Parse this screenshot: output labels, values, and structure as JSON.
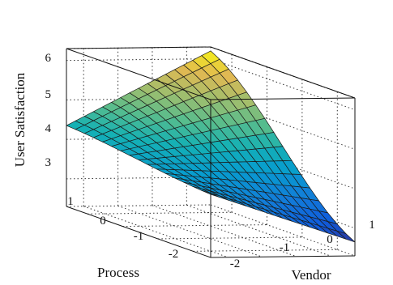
{
  "chart_data": {
    "type": "surface",
    "title": "",
    "xlabel": "Vendor",
    "ylabel": "Process",
    "zlabel": "User Satisfaction",
    "x_ticks": [
      "-2",
      "-1",
      "0",
      "1"
    ],
    "y_ticks": [
      "-2",
      "-1",
      "0",
      "1"
    ],
    "z_ticks": [
      "3",
      "4",
      "5",
      "6"
    ],
    "xlim": [
      -2.5,
      1.7
    ],
    "ylim": [
      -2.5,
      1.6
    ],
    "zlim": [
      2.3,
      6.3
    ],
    "grid": true,
    "colormap": "parula",
    "corner_values": {
      "vendor_low_process_high": 4.35,
      "vendor_high_process_high": 6.2,
      "vendor_low_process_low": 3.9,
      "vendor_high_process_low": 2.65
    },
    "surface_resolution": 16
  }
}
